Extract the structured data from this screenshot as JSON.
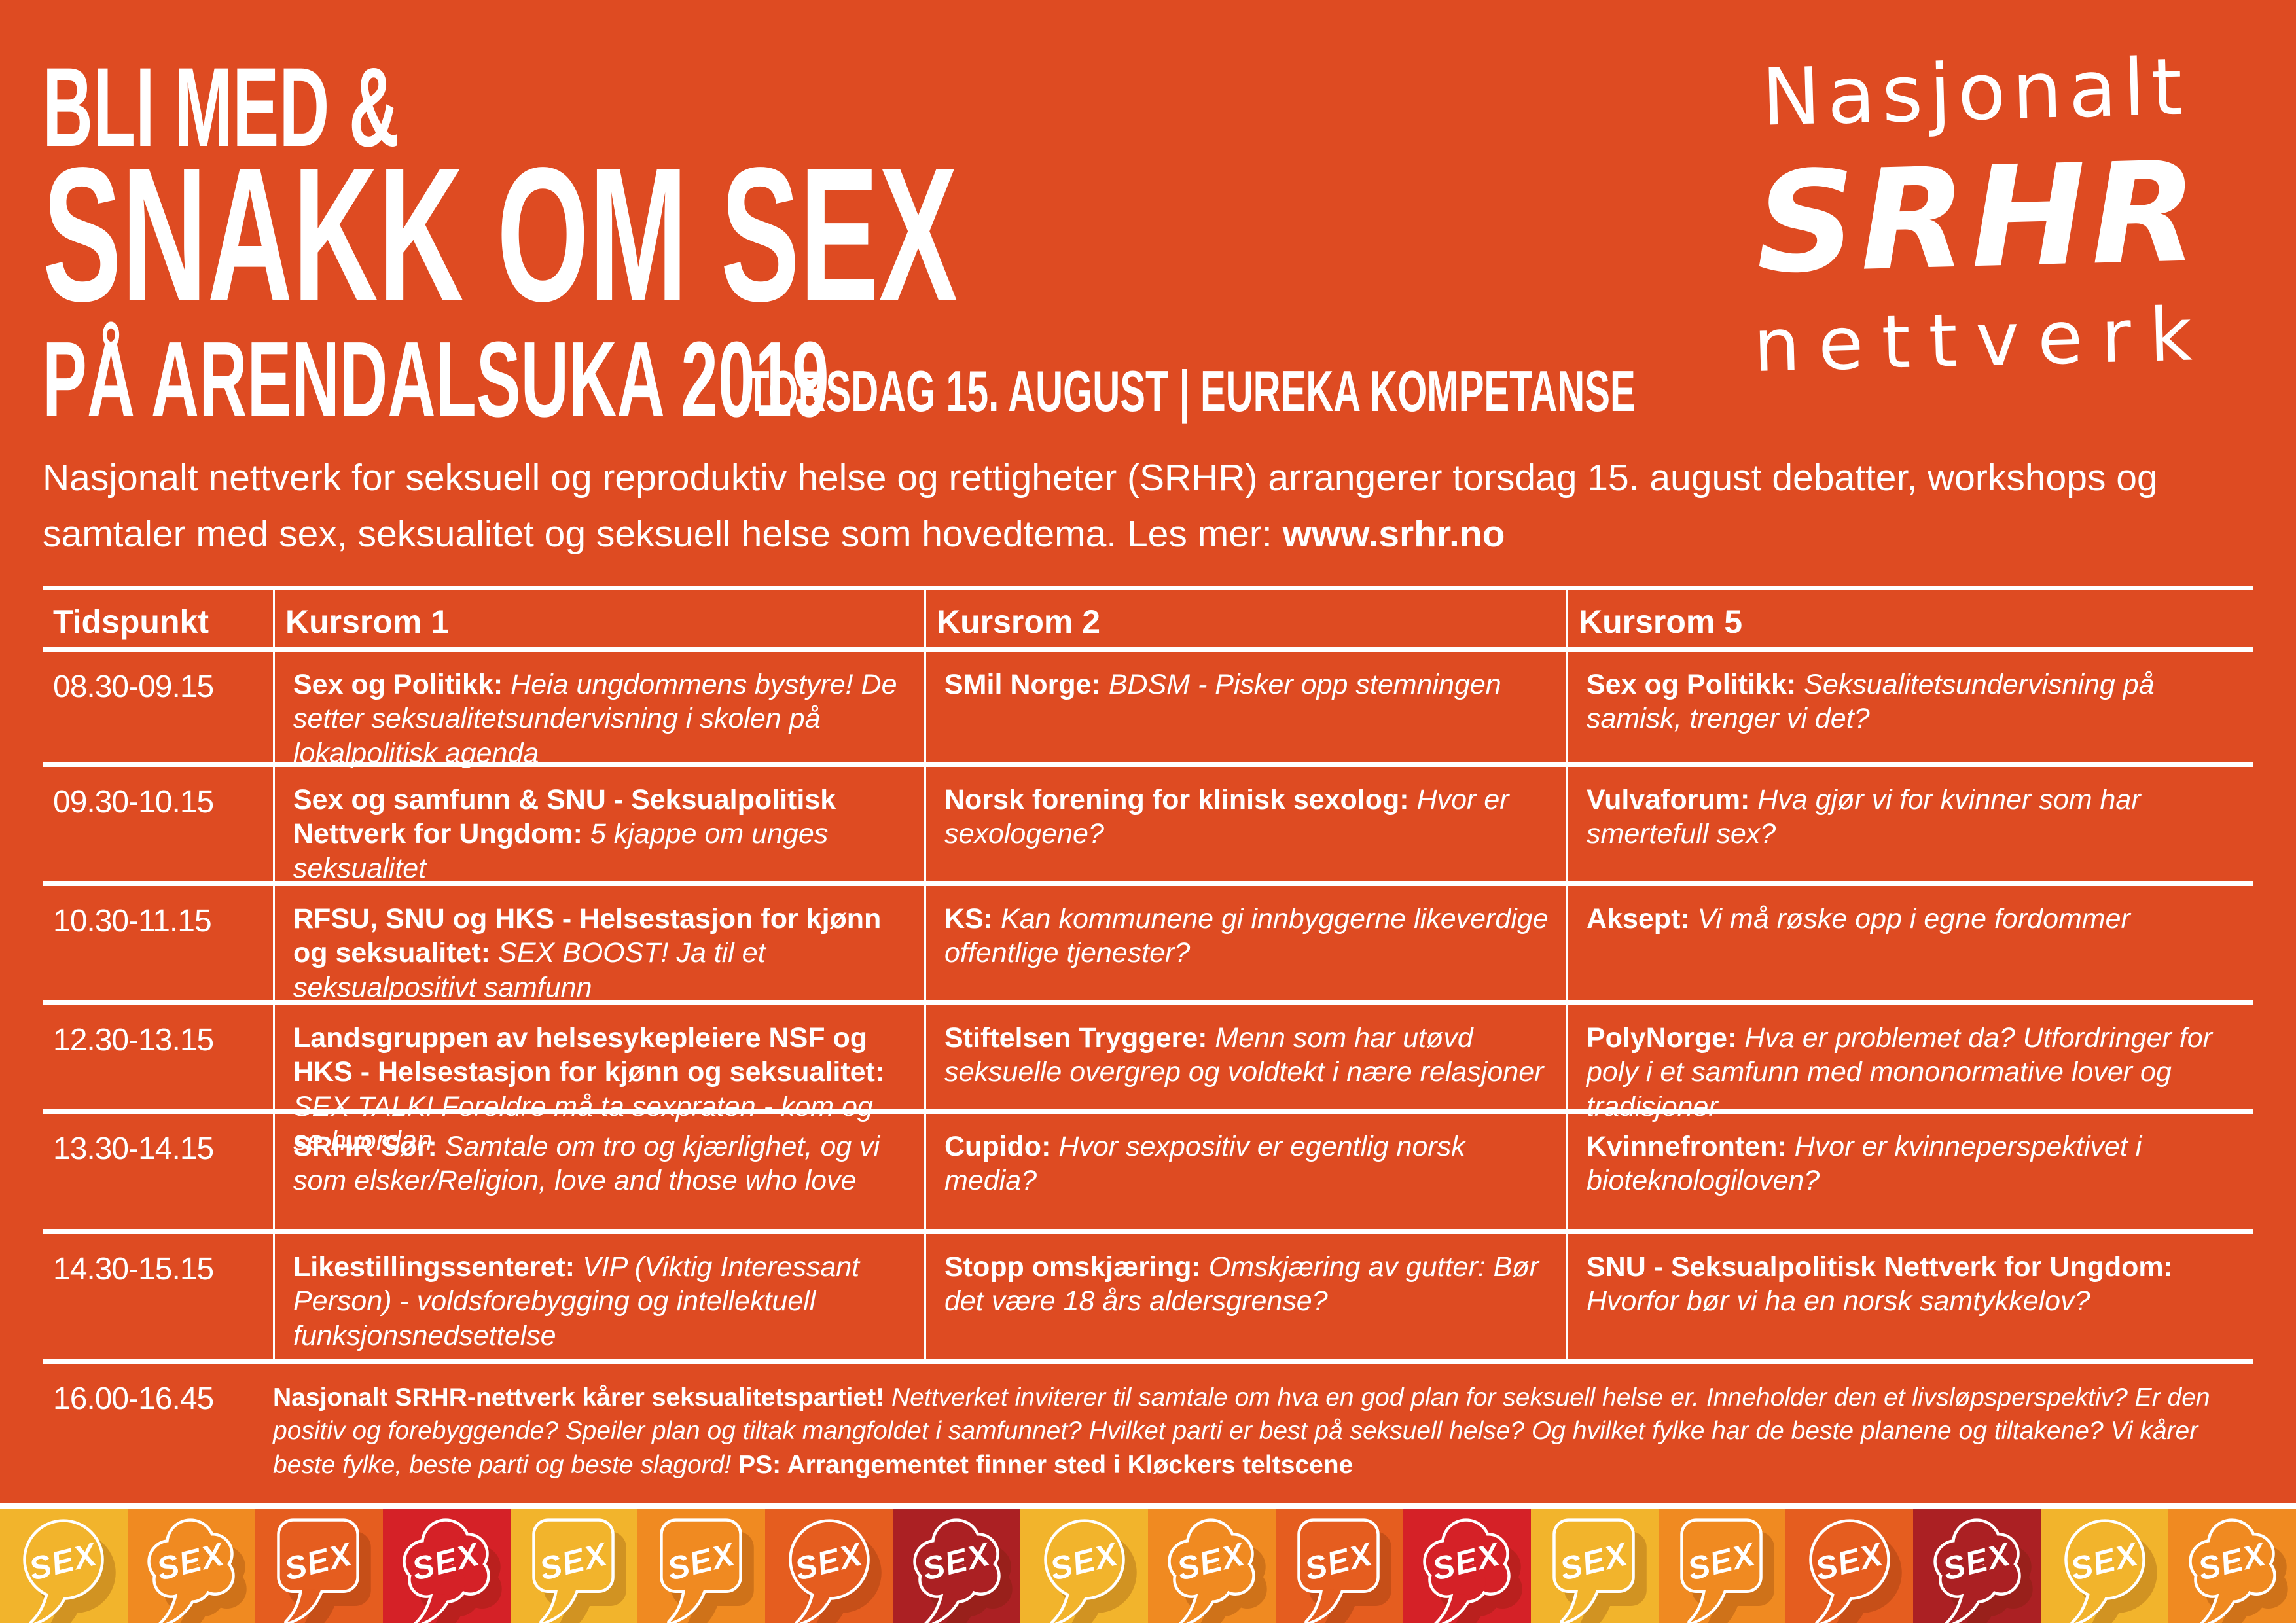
{
  "page": {
    "bg": "#de4b22",
    "header": {
      "kicker": "BLI MED &",
      "title": "SNAKK OM SEX",
      "subtitle": "PÅ ARENDALSUKA 2019",
      "subtitle_detail": "TORSDAG 15. AUGUST | EUREKA KOMPETANSE",
      "logo": {
        "line1": "Nasjonalt",
        "line2": "SRHR",
        "line3": "nettverk"
      }
    },
    "intro": {
      "text": "Nasjonalt nettverk for seksuell og reproduktiv helse og rettigheter (SRHR) arrangerer torsdag 15. august debatter, workshops og samtaler med sex, seksualitet og seksuell helse som hovedtema. Les mer: ",
      "link": "www.srhr.no"
    }
  },
  "schedule": {
    "columns": [
      "Tidspunkt",
      "Kursrom 1",
      "Kursrom 2",
      "Kursrom 5"
    ],
    "rows": [
      {
        "time": "08.30-09.15",
        "cells": [
          {
            "lead": "Sex og Politikk:",
            "desc": "Heia ungdommens bystyre! De setter seksualitetsundervisning i skolen på lokalpolitisk agenda"
          },
          {
            "lead": "SMil Norge:",
            "desc": "BDSM - Pisker opp stemningen"
          },
          {
            "lead": "Sex og Politikk:",
            "desc": "Seksualitetsundervisning på samisk, trenger vi det?"
          }
        ]
      },
      {
        "time": "09.30-10.15",
        "cells": [
          {
            "lead": "Sex og samfunn & SNU - Seksualpolitisk Nettverk for Ungdom:",
            "desc": "5 kjappe om unges seksualitet"
          },
          {
            "lead": "Norsk forening for klinisk sexolog:",
            "desc": "Hvor er sexologene?"
          },
          {
            "lead": "Vulvaforum:",
            "desc": "Hva gjør vi for kvinner som har smertefull sex?"
          }
        ]
      },
      {
        "time": "10.30-11.15",
        "cells": [
          {
            "lead": "RFSU, SNU og HKS - Helsestasjon for kjønn og seksualitet:",
            "desc": "SEX BOOST! Ja til et seksualpositivt samfunn"
          },
          {
            "lead": "KS:",
            "desc": "Kan kommunene gi innbyggerne likeverdige offentlige tjenester?"
          },
          {
            "lead": "Aksept:",
            "desc": "Vi må røske opp i egne fordommer"
          }
        ]
      },
      {
        "time": "12.30-13.15",
        "cells": [
          {
            "lead": "Landsgruppen av helsesykepleiere NSF og HKS - Helsestasjon for kjønn og seksualitet:",
            "desc": "SEX TALK! Foreldre må ta sexpraten - kom og se hvordan"
          },
          {
            "lead": "Stiftelsen Tryggere:",
            "desc": "Menn som har utøvd seksuelle overgrep og voldtekt i nære relasjoner"
          },
          {
            "lead": "PolyNorge:",
            "desc": "Hva er problemet da? Utfordringer for poly i et samfunn med mononormative lover og tradisjoner"
          }
        ]
      },
      {
        "time": "13.30-14.15",
        "cells": [
          {
            "lead": "SRHR Sør:",
            "desc": "Samtale om tro og kjærlighet, og vi som elsker/Religion, love and those who love"
          },
          {
            "lead": "Cupido:",
            "desc": "Hvor sexpositiv er egentlig norsk media?"
          },
          {
            "lead": "Kvinnefronten:",
            "desc": "Hvor er kvinneperspektivet i bioteknologiloven?"
          }
        ]
      },
      {
        "time": "14.30-15.15",
        "cells": [
          {
            "lead": "Likestillingssenteret:",
            "desc": "VIP (Viktig Interessant Person) - voldsforebygging og intellektuell funksjonsnedsettelse"
          },
          {
            "lead": "Stopp omskjæring:",
            "desc": "Omskjæring av gutter: Bør det være 18 års aldersgrense?"
          },
          {
            "lead": "SNU - Seksualpolitisk Nettverk for Ungdom:",
            "desc": "Hvorfor bør vi ha en norsk samtykkelov?"
          }
        ]
      }
    ],
    "finale": {
      "time": "16.00-16.45",
      "lead": "Nasjonalt SRHR-nettverk kårer seksualitetspartiet!",
      "desc": " Nettverket inviterer til samtale om hva en god plan for seksuell helse er. Inneholder den et livsløpsperspektiv? Er den positiv og forebyggende? Speiler plan og tiltak mangfoldet i samfunnet? Hvilket parti er best på seksuell helse? Og hvilket fylke har de beste planene og tiltakene? Vi kårer beste fylke, beste parti og beste slagord! ",
      "ps": "PS: Arrangementet finner sted i Kløckers teltscene"
    }
  },
  "footer": {
    "bubble_label": "SEX",
    "colors": {
      "yellow": "#f2b42c",
      "orange": "#f08a21",
      "orangered": "#e55d1f",
      "red": "#d52127",
      "darkred": "#ab2023"
    },
    "tiles": [
      {
        "shape": "round",
        "color": "yellow"
      },
      {
        "shape": "cloud",
        "color": "orange"
      },
      {
        "shape": "square",
        "color": "orangered"
      },
      {
        "shape": "cloud",
        "color": "red"
      },
      {
        "shape": "square",
        "color": "yellow"
      },
      {
        "shape": "square",
        "color": "orange"
      },
      {
        "shape": "round",
        "color": "orangered"
      },
      {
        "shape": "cloud",
        "color": "darkred"
      },
      {
        "shape": "round",
        "color": "yellow"
      },
      {
        "shape": "cloud",
        "color": "orange"
      },
      {
        "shape": "square",
        "color": "orangered"
      },
      {
        "shape": "cloud",
        "color": "red"
      },
      {
        "shape": "square",
        "color": "yellow"
      },
      {
        "shape": "square",
        "color": "orange"
      },
      {
        "shape": "round",
        "color": "orangered"
      },
      {
        "shape": "cloud",
        "color": "darkred"
      },
      {
        "shape": "round",
        "color": "yellow"
      },
      {
        "shape": "cloud",
        "color": "orange"
      }
    ]
  }
}
